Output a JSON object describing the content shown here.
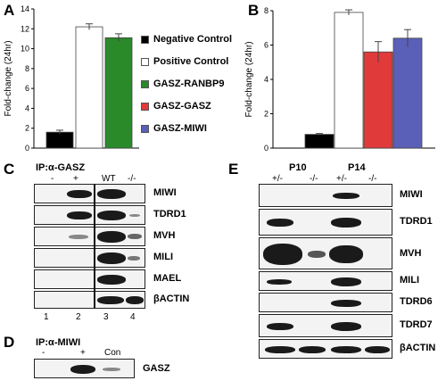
{
  "panels": {
    "A": "A",
    "B": "B",
    "C": "C",
    "D": "D",
    "E": "E"
  },
  "chart_data": [
    {
      "type": "bar",
      "ylabel": "Fold-change (24hr)",
      "ylim": [
        0,
        14
      ],
      "yticks": [
        0,
        2,
        4,
        6,
        8,
        10,
        12,
        14
      ],
      "categories": [
        "Negative Control",
        "Positive Control",
        "GASZ-RANBP9"
      ],
      "values": [
        1.6,
        12.2,
        11.1
      ],
      "errors": [
        0.2,
        0.3,
        0.4
      ],
      "colors": [
        "#000000",
        "#ffffff",
        "#2a8a2a"
      ],
      "legend": [
        {
          "label": "Negative Control",
          "color": "#000000"
        },
        {
          "label": "Positive Control",
          "color": "#ffffff"
        },
        {
          "label": "GASZ-RANBP9",
          "color": "#2a8a2a"
        },
        {
          "label": "GASZ-GASZ",
          "color": "#e03a3a"
        },
        {
          "label": "GASZ-MIWI",
          "color": "#5a5fb8"
        }
      ]
    },
    {
      "type": "bar",
      "ylabel": "Fold-change (24hr)",
      "ylim": [
        0,
        8
      ],
      "yticks": [
        0,
        2,
        4,
        6,
        8
      ],
      "categories": [
        "Negative Control",
        "Positive Control",
        "GASZ-GASZ",
        "GASZ-MIWI"
      ],
      "values": [
        0.8,
        7.9,
        5.6,
        6.4
      ],
      "errors": [
        0.05,
        0.15,
        0.6,
        0.5
      ],
      "colors": [
        "#000000",
        "#ffffff",
        "#e03a3a",
        "#5a5fb8"
      ]
    }
  ],
  "panelC": {
    "ip_label": "IP:α-GASZ",
    "lane_top": [
      "-",
      "+",
      "WT",
      "-/-"
    ],
    "lane_bottom": [
      "1",
      "2",
      "3",
      "4"
    ],
    "rows": [
      "MIWI",
      "TDRD1",
      "MVH",
      "MILI",
      "MAEL",
      "βACTIN"
    ]
  },
  "panelD": {
    "ip_label": "IP:α-MIWI",
    "lanes": [
      "-",
      "+",
      "Con"
    ],
    "row": "GASZ"
  },
  "panelE": {
    "groups": [
      "P10",
      "P14"
    ],
    "lanes": [
      "+/-",
      "-/-",
      "+/-",
      "-/-"
    ],
    "rows": [
      "MIWI",
      "TDRD1",
      "MVH",
      "MILI",
      "TDRD6",
      "TDRD7",
      "βACTIN"
    ]
  }
}
